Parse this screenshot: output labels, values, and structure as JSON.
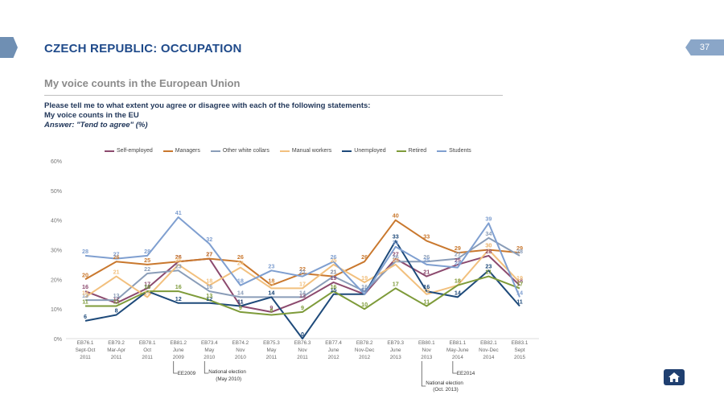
{
  "header": {
    "title": "CZECH REPUBLIC: OCCUPATION",
    "page_number": "37"
  },
  "subtitle": "My voice counts in the European Union",
  "question": {
    "line1": "Please tell me to what extent you agree or disagree with each of the following statements:",
    "line2": "My voice counts in the EU",
    "line3": "Answer: \"Tend to agree\" (%)"
  },
  "chart_data": {
    "type": "line",
    "ylim": [
      0,
      60
    ],
    "y_ticks": [
      "0%",
      "10%",
      "20%",
      "30%",
      "40%",
      "50%",
      "60%"
    ],
    "categories": [
      [
        "EB76.1",
        "Sept-Oct",
        "2011"
      ],
      [
        "EB79.2",
        "Mar-Apr",
        "2011"
      ],
      [
        "EB78.1",
        "Oct",
        "2011"
      ],
      [
        "EB81.2",
        "June",
        "2009"
      ],
      [
        "EB73.4",
        "May",
        "2010"
      ],
      [
        "EB74.2",
        "Nov",
        "2010"
      ],
      [
        "EB75.3",
        "May",
        "2011"
      ],
      [
        "EB76.3",
        "Nov",
        "2011"
      ],
      [
        "EB77.4",
        "June",
        "2012"
      ],
      [
        "EB78.2",
        "Nov-Dec",
        "2012"
      ],
      [
        "EB79.3",
        "June",
        "2013"
      ],
      [
        "EB80.1",
        "Nov",
        "2013"
      ],
      [
        "EB81.1",
        "May-June",
        "2014"
      ],
      [
        "EB82.1",
        "Nov-Dec",
        "2014"
      ],
      [
        "EB83.1",
        "Sept",
        "2015"
      ]
    ],
    "series": [
      {
        "name": "Self-employed",
        "color": "#8c4a6e",
        "values": [
          16,
          12,
          17,
          26,
          27,
          11,
          9,
          13,
          19,
          15,
          27,
          21,
          25,
          28,
          18
        ]
      },
      {
        "name": "Managers",
        "color": "#c9782e",
        "values": [
          20,
          26,
          25,
          26,
          27,
          26,
          18,
          22,
          21,
          26,
          40,
          33,
          29,
          30,
          29
        ]
      },
      {
        "name": "Other white collars",
        "color": "#8a9db8",
        "values": [
          13,
          13,
          22,
          23,
          16,
          14,
          14,
          14,
          21,
          16,
          26,
          26,
          27,
          34,
          28
        ]
      },
      {
        "name": "Manual workers",
        "color": "#f2c07e",
        "values": [
          14,
          21,
          14,
          25,
          18,
          24,
          17,
          17,
          25,
          19,
          25,
          15,
          18,
          30,
          19
        ]
      },
      {
        "name": "Unemployed",
        "color": "#1e4a7a",
        "values": [
          6,
          8,
          16,
          12,
          12,
          11,
          14,
          0,
          15,
          15,
          33,
          16,
          14,
          23,
          11
        ]
      },
      {
        "name": "Retired",
        "color": "#7e9b3a",
        "values": [
          11,
          11,
          16,
          16,
          13,
          9,
          8,
          9,
          16,
          10,
          17,
          11,
          18,
          21,
          17
        ]
      },
      {
        "name": "Students",
        "color": "#7f9fd0",
        "values": [
          28,
          27,
          28,
          41,
          32,
          18,
          23,
          21,
          26,
          15,
          31,
          25,
          24,
          39,
          14
        ]
      }
    ],
    "annotations": [
      {
        "text": "EE2009",
        "cat_index": 3
      },
      {
        "text": "National election (May 2010)",
        "cat_index": 4
      },
      {
        "text": "National election (Oct. 2013)",
        "cat_index": 11
      },
      {
        "text": "EE2014",
        "cat_index": 12
      }
    ]
  }
}
